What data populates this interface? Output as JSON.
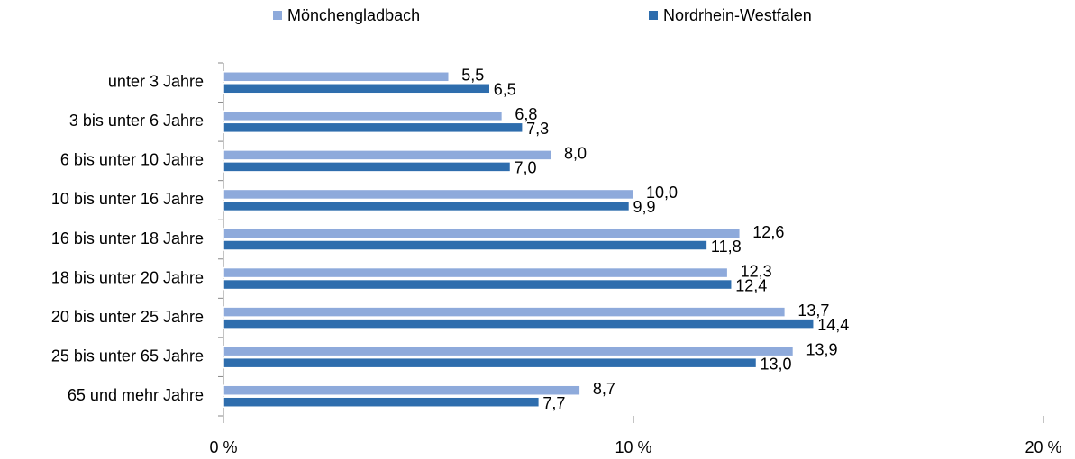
{
  "chart_data": {
    "type": "barh",
    "categories": [
      "unter 3 Jahre",
      "3 bis unter 6 Jahre",
      "6 bis unter 10 Jahre",
      "10 bis unter 16 Jahre",
      "16 bis unter 18 Jahre",
      "18 bis unter 20 Jahre",
      "20 bis unter 25 Jahre",
      "25 bis unter 65 Jahre",
      "65 und mehr Jahre"
    ],
    "series": [
      {
        "name": "Mönchengladbach",
        "color": "#8eaadb",
        "values": [
          5.5,
          6.8,
          8.0,
          10.0,
          12.6,
          12.3,
          13.7,
          13.9,
          8.7
        ],
        "value_labels": [
          "5,5",
          "6,8",
          "8,0",
          "10,0",
          "12,6",
          "12,3",
          "13,7",
          "13,9",
          "8,7"
        ]
      },
      {
        "name": "Nordrhein-Westfalen",
        "color": "#2e6dad",
        "values": [
          6.5,
          7.3,
          7.0,
          9.9,
          11.8,
          12.4,
          14.4,
          13.0,
          7.7
        ],
        "value_labels": [
          "6,5",
          "7,3",
          "7,0",
          "9,9",
          "11,8",
          "12,4",
          "14,4",
          "13,0",
          "7,7"
        ]
      }
    ],
    "xlim": [
      0,
      20
    ],
    "xticks": [
      {
        "value": 0,
        "label": "0 %"
      },
      {
        "value": 10,
        "label": "10 %"
      },
      {
        "value": 20,
        "label": "20 %"
      }
    ],
    "legend": "top"
  }
}
